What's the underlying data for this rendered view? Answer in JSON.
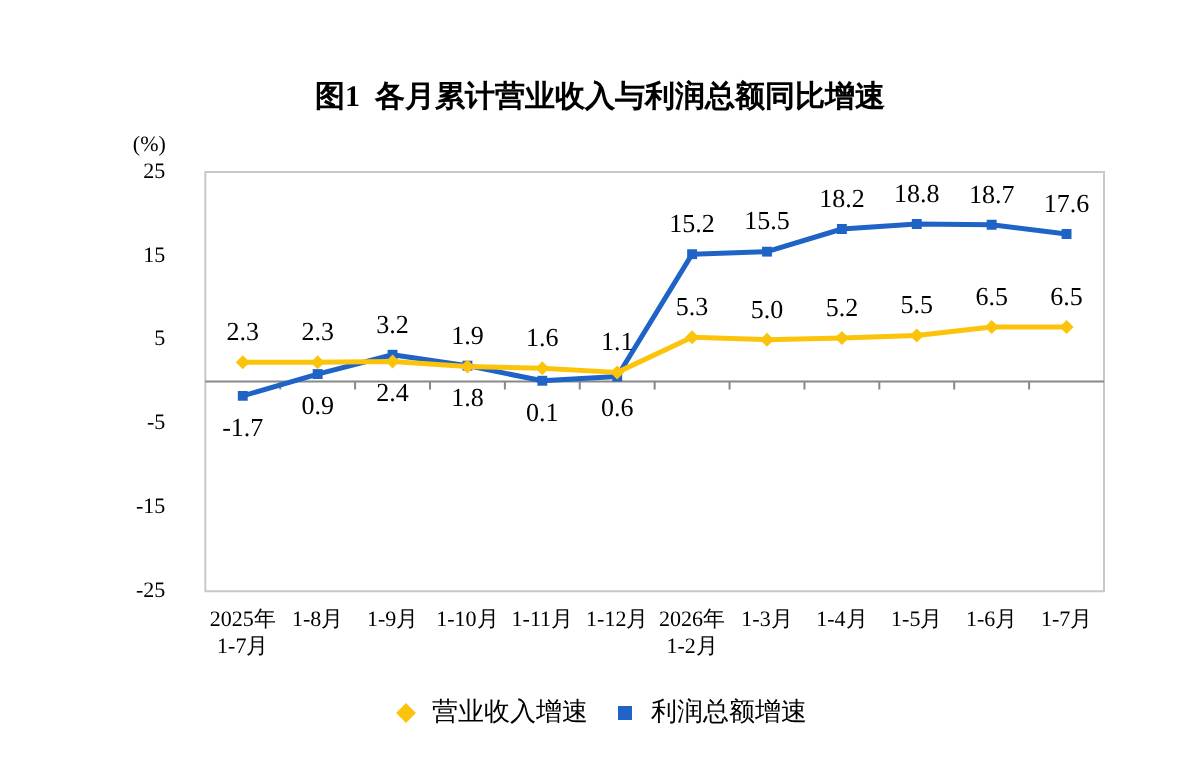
{
  "chart_data": {
    "type": "line",
    "title": "图1  各月累计营业收入与利润总额同比增速",
    "ylabel": "(%)",
    "categories": [
      "2025年\n1-7月",
      "1-8月",
      "1-9月",
      "1-10月",
      "1-11月",
      "1-12月",
      "2026年\n1-2月",
      "1-3月",
      "1-4月",
      "1-5月",
      "1-6月",
      "1-7月"
    ],
    "series": [
      {
        "name": "营业收入增速",
        "color": "#fbc40a",
        "marker": "diamond",
        "values": [
          2.3,
          2.3,
          2.4,
          1.8,
          1.6,
          1.1,
          5.3,
          5.0,
          5.2,
          5.5,
          6.5,
          6.5
        ],
        "value_labels": [
          "2.3",
          "2.3",
          "2.4",
          "1.8",
          "1.6",
          "1.1",
          "5.3",
          "5.0",
          "5.2",
          "5.5",
          "6.5",
          "6.5"
        ]
      },
      {
        "name": "利润总额增速",
        "color": "#1f63c6",
        "marker": "square",
        "values": [
          -1.7,
          0.9,
          3.2,
          1.9,
          0.1,
          0.6,
          15.2,
          15.5,
          18.2,
          18.8,
          18.7,
          17.6
        ],
        "value_labels": [
          "-1.7",
          "0.9",
          "3.2",
          "1.9",
          "0.1",
          "0.6",
          "15.2",
          "15.5",
          "18.2",
          "18.8",
          "18.7",
          "17.6"
        ]
      }
    ],
    "ylim": [
      -25,
      25
    ],
    "yticks": [
      -25,
      -15,
      -5,
      5,
      15,
      25
    ],
    "grid": false,
    "legend": "bottom",
    "line_style": "solid"
  }
}
